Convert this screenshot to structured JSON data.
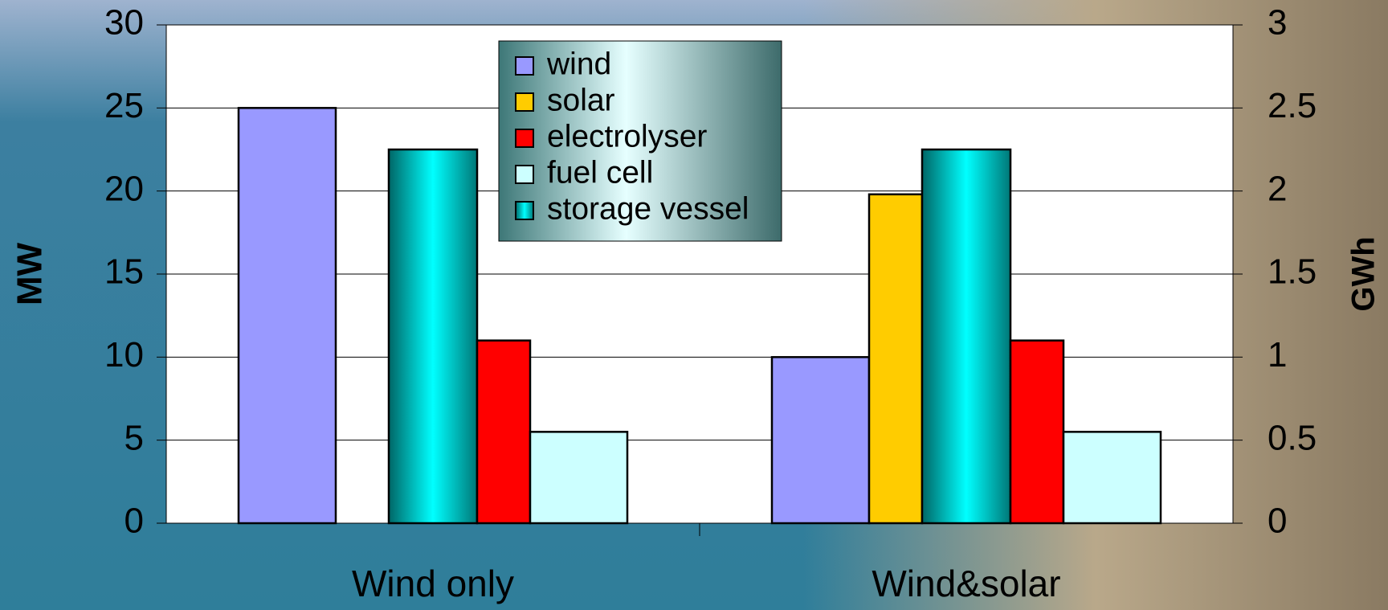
{
  "chart_data": {
    "type": "bar",
    "categories": [
      "Wind only",
      "Wind&solar"
    ],
    "y_label": "MW",
    "y2_label": "GWh",
    "ylim": [
      0,
      30
    ],
    "yticks": [
      0,
      5,
      10,
      15,
      20,
      25,
      30
    ],
    "y2lim": [
      0,
      3
    ],
    "y2ticks": [
      0,
      0.5,
      1,
      1.5,
      2,
      2.5,
      3
    ],
    "grid": true,
    "legend": "top",
    "series": [
      {
        "name": "wind",
        "color": "#9999ff",
        "values": [
          25,
          10
        ]
      },
      {
        "name": "solar",
        "color": "#ffcc00",
        "values": [
          null,
          19.8
        ]
      },
      {
        "name": "electrolyser",
        "color": "#ff0000",
        "values": [
          11,
          11
        ]
      },
      {
        "name": "fuel cell",
        "color": "#ccffff",
        "values": [
          5.5,
          5.5
        ]
      },
      {
        "name": "storage vessel",
        "color": "#00ffff",
        "axis": "y2",
        "values": [
          2.25,
          2.25
        ]
      }
    ]
  }
}
